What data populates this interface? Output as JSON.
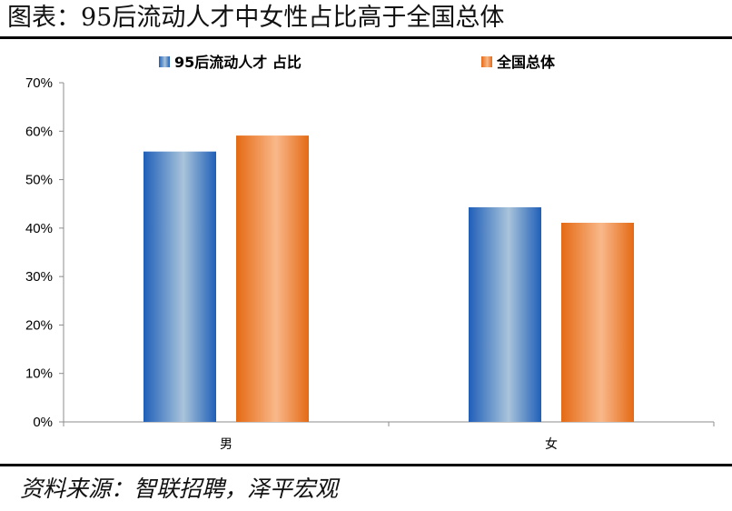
{
  "figure": {
    "title": "图表：95后流动人才中女性占比高于全国总体",
    "source": "资料来源：智联招聘，泽平宏观"
  },
  "chart_data": {
    "type": "bar",
    "categories": [
      "男",
      "女"
    ],
    "series": [
      {
        "name": "95后流动人才 占比",
        "values": [
          55.8,
          44.3
        ],
        "color": "#2E75C8"
      },
      {
        "name": "全国总体",
        "values": [
          59.1,
          41.1
        ],
        "color": "#E8721C"
      }
    ],
    "ylim": [
      0,
      70
    ],
    "yticks": [
      0,
      10,
      20,
      30,
      40,
      50,
      60,
      70
    ],
    "ytick_format": "%",
    "grid": false,
    "legend_position": "top"
  }
}
